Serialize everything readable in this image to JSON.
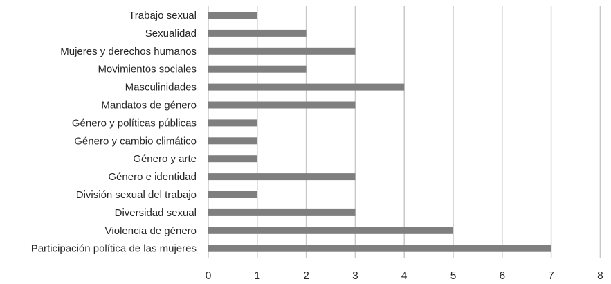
{
  "chart_data": {
    "type": "bar",
    "orientation": "horizontal",
    "categories": [
      "Trabajo sexual",
      "Sexualidad",
      "Mujeres y derechos humanos",
      "Movimientos sociales",
      "Masculinidades",
      "Mandatos de género",
      "Género y políticas públicas",
      "Género y cambio climático",
      "Género y arte",
      "Género e identidad",
      "División sexual del trabajo",
      "Diversidad sexual",
      "Violencia de género",
      "Participación política de las mujeres"
    ],
    "values": [
      1,
      2,
      3,
      2,
      4,
      3,
      1,
      1,
      1,
      3,
      1,
      3,
      5,
      7
    ],
    "xlim": [
      0,
      8
    ],
    "xticks": [
      "0",
      "1",
      "2",
      "3",
      "4",
      "5",
      "6",
      "7",
      "8"
    ],
    "title": "",
    "xlabel": "",
    "ylabel": "",
    "grid": "vertical",
    "legend": "none",
    "colors": {
      "bar": "#7f7f7f",
      "grid": "#c8c8c8",
      "text": "#262626"
    }
  }
}
